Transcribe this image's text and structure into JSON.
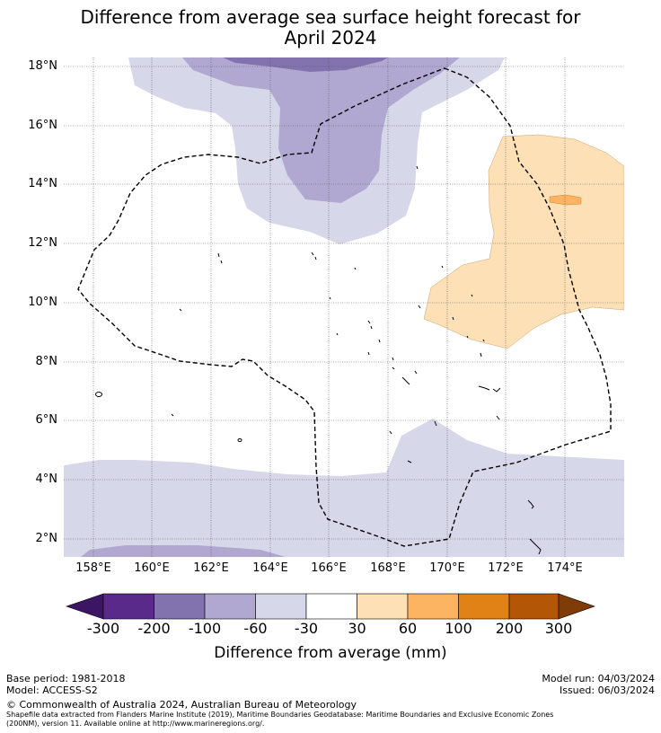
{
  "title": {
    "line1": "Difference from average sea surface height forecast for",
    "line2": "April 2024"
  },
  "axes": {
    "lat_labels": [
      "18°N",
      "16°N",
      "14°N",
      "12°N",
      "10°N",
      "8°N",
      "6°N",
      "4°N",
      "2°N"
    ],
    "lon_labels": [
      "158°E",
      "160°E",
      "162°E",
      "164°E",
      "166°E",
      "168°E",
      "170°E",
      "172°E",
      "174°E"
    ]
  },
  "map": {
    "lat_range": [
      1.4,
      18.3
    ],
    "lon_range": [
      157.0,
      176.0
    ],
    "eez_boundary_style": "dashed black"
  },
  "colorbar": {
    "title": "Difference from average (mm)",
    "ticks": [
      "-300",
      "-200",
      "-100",
      "-60",
      "-30",
      "30",
      "60",
      "100",
      "200",
      "300"
    ],
    "colors": [
      "#3d1565",
      "#5a2a8a",
      "#8272ae",
      "#b0a8d1",
      "#d7d7ea",
      "#ffffff",
      "#fde0b5",
      "#fdb462",
      "#e08215",
      "#b35606",
      "#7f3b08"
    ]
  },
  "footer": {
    "base_period": "Base period: 1981-2018",
    "model": "Model: ACCESS-S2",
    "model_run": "Model run: 04/03/2024",
    "issued": "Issued: 06/03/2024",
    "copyright": "© Commonwealth of Australia 2024, Australian Bureau of Meteorology",
    "shapefile_line1": "Shapefile data extracted from Flanders Marine Institute (2019), Maritime Boundaries Geodatabase: Maritime Boundaries and Exclusive Economic Zones",
    "shapefile_line2": "(200NM), version 11. Available online at http://www.marineregions.org/."
  }
}
